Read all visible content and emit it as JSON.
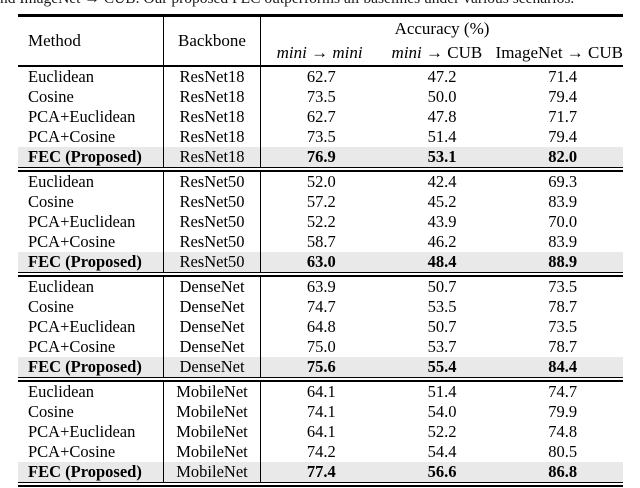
{
  "caption": "nd ImageNet → CUB. Our proposed FEC outperforms all baselines under various scenarios.",
  "colors": {
    "highlight_row": "#e9e9e9",
    "rule": "#000000",
    "text": "#000000"
  },
  "table": {
    "header": {
      "method": "Method",
      "backbone": "Backbone",
      "accuracy_group": "Accuracy (%)",
      "subcolumns": [
        [
          {
            "text": "mini",
            "italic": true
          },
          {
            "text": " → ",
            "italic": false
          },
          {
            "text": "mini",
            "italic": true
          }
        ],
        [
          {
            "text": "mini",
            "italic": true
          },
          {
            "text": " → CUB",
            "italic": false
          }
        ],
        [
          {
            "text": "ImageNet → CUB",
            "italic": false
          }
        ]
      ]
    },
    "blocks": [
      {
        "backbone": "ResNet18",
        "rows": [
          {
            "method": "Euclidean",
            "backbone": "ResNet18",
            "values": [
              "62.7",
              "47.2",
              "71.4"
            ],
            "highlight": false
          },
          {
            "method": "Cosine",
            "backbone": "ResNet18",
            "values": [
              "73.5",
              "50.0",
              "79.4"
            ],
            "highlight": false
          },
          {
            "method": "PCA+Euclidean",
            "backbone": "ResNet18",
            "values": [
              "62.7",
              "47.8",
              "71.7"
            ],
            "highlight": false
          },
          {
            "method": "PCA+Cosine",
            "backbone": "ResNet18",
            "values": [
              "73.5",
              "51.4",
              "79.4"
            ],
            "highlight": false
          },
          {
            "method": "FEC (Proposed)",
            "backbone": "ResNet18",
            "values": [
              "76.9",
              "53.1",
              "82.0"
            ],
            "highlight": true
          }
        ]
      },
      {
        "backbone": "ResNet50",
        "rows": [
          {
            "method": "Euclidean",
            "backbone": "ResNet50",
            "values": [
              "52.0",
              "42.4",
              "69.3"
            ],
            "highlight": false
          },
          {
            "method": "Cosine",
            "backbone": "ResNet50",
            "values": [
              "57.2",
              "45.2",
              "83.9"
            ],
            "highlight": false
          },
          {
            "method": "PCA+Euclidean",
            "backbone": "ResNet50",
            "values": [
              "52.2",
              "43.9",
              "70.0"
            ],
            "highlight": false
          },
          {
            "method": "PCA+Cosine",
            "backbone": "ResNet50",
            "values": [
              "58.7",
              "46.2",
              "83.9"
            ],
            "highlight": false
          },
          {
            "method": "FEC (Proposed)",
            "backbone": "ResNet50",
            "values": [
              "63.0",
              "48.4",
              "88.9"
            ],
            "highlight": true
          }
        ]
      },
      {
        "backbone": "DenseNet",
        "rows": [
          {
            "method": "Euclidean",
            "backbone": "DenseNet",
            "values": [
              "63.9",
              "50.7",
              "73.5"
            ],
            "highlight": false
          },
          {
            "method": "Cosine",
            "backbone": "DenseNet",
            "values": [
              "74.7",
              "53.5",
              "78.7"
            ],
            "highlight": false
          },
          {
            "method": "PCA+Euclidean",
            "backbone": "DenseNet",
            "values": [
              "64.8",
              "50.7",
              "73.5"
            ],
            "highlight": false
          },
          {
            "method": "PCA+Cosine",
            "backbone": "DenseNet",
            "values": [
              "75.0",
              "53.7",
              "78.7"
            ],
            "highlight": false
          },
          {
            "method": "FEC (Proposed)",
            "backbone": "DenseNet",
            "values": [
              "75.6",
              "55.4",
              "84.4"
            ],
            "highlight": true
          }
        ]
      },
      {
        "backbone": "MobileNet",
        "rows": [
          {
            "method": "Euclidean",
            "backbone": "MobileNet",
            "values": [
              "64.1",
              "51.4",
              "74.7"
            ],
            "highlight": false
          },
          {
            "method": "Cosine",
            "backbone": "MobileNet",
            "values": [
              "74.1",
              "54.0",
              "79.9"
            ],
            "highlight": false
          },
          {
            "method": "PCA+Euclidean",
            "backbone": "MobileNet",
            "values": [
              "64.1",
              "52.2",
              "74.8"
            ],
            "highlight": false
          },
          {
            "method": "PCA+Cosine",
            "backbone": "MobileNet",
            "values": [
              "74.2",
              "54.4",
              "80.5"
            ],
            "highlight": false
          },
          {
            "method": "FEC (Proposed)",
            "backbone": "MobileNet",
            "values": [
              "77.4",
              "56.6",
              "86.8"
            ],
            "highlight": true
          }
        ]
      }
    ]
  }
}
